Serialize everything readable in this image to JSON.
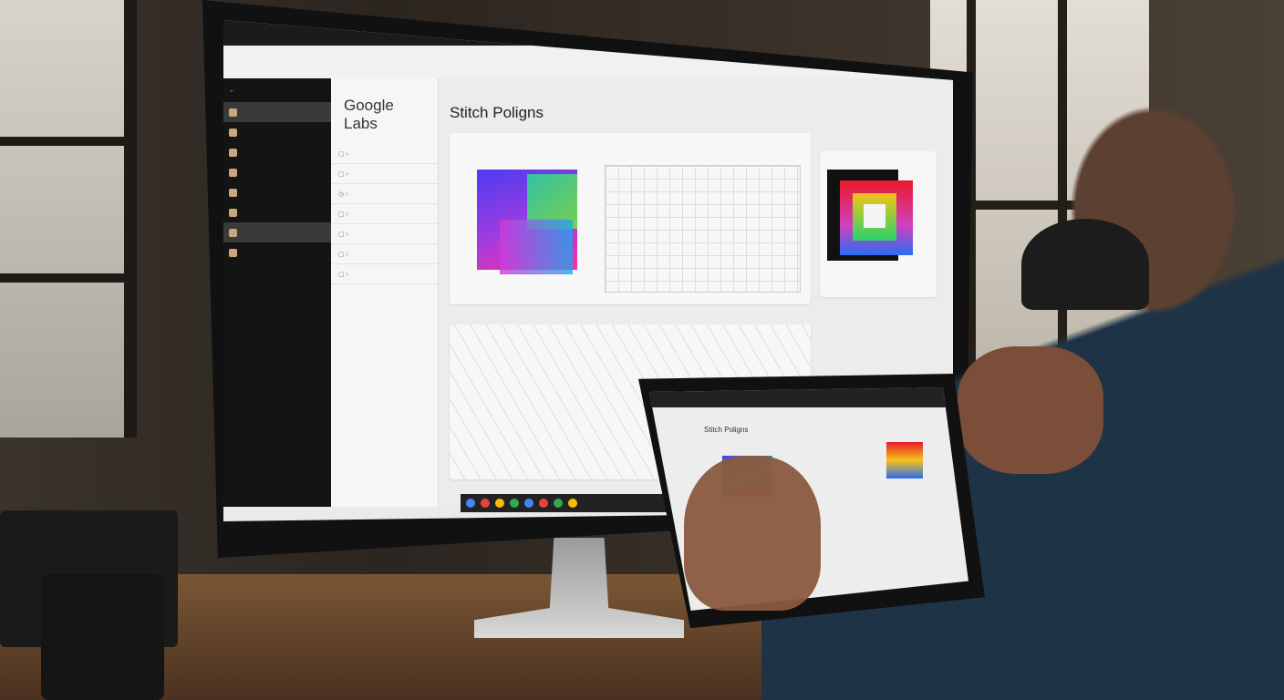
{
  "scene": {
    "description_colors": {
      "wall": "#2c2520",
      "desk": "#7a5634",
      "shirt": "#1f3346"
    }
  },
  "screen": {
    "brand": "Google Labs",
    "page_title": "Stitch Poligns",
    "sidebar_items": 8,
    "nav_items": 7,
    "accent_colors": [
      "#4b3cf0",
      "#29d36b",
      "#ff2fa0",
      "#e81a2a",
      "#f6c21a"
    ]
  },
  "tablet": {
    "page_title": "Stitch Poligns"
  }
}
